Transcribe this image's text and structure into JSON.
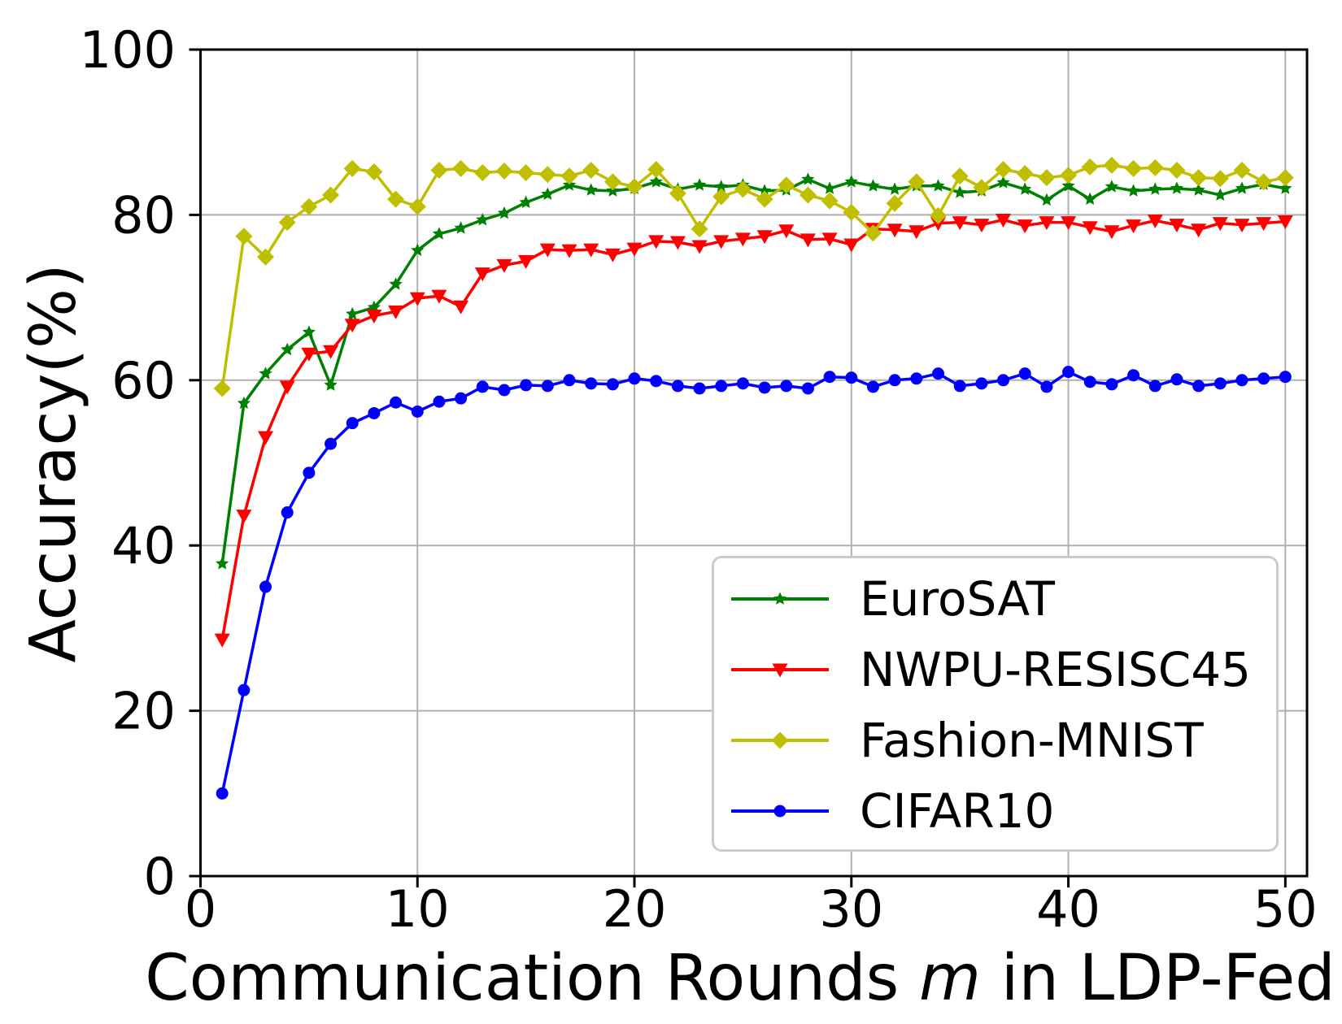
{
  "figure": {
    "background": "#ffffff",
    "x_axis": {
      "label_pre": "Communication Rounds ",
      "label_var": "m",
      "label_post": " in LDP-Fed",
      "ticks": [
        0,
        10,
        20,
        30,
        40,
        50
      ]
    },
    "y_axis": {
      "label": "Accuracy(%)",
      "ticks": [
        0,
        20,
        40,
        60,
        80,
        100
      ]
    },
    "grid": {
      "show": true,
      "color": "#b0b0b0"
    },
    "spine_color": "#000000",
    "legend": {
      "position": "lower-right-inside",
      "border_color": "#cccccc",
      "background": "#ffffff"
    }
  },
  "chart_data": {
    "type": "line",
    "title": "",
    "xlabel": "Communication Rounds m in LDP-Fed",
    "ylabel": "Accuracy(%)",
    "xlim": [
      0,
      51
    ],
    "ylim": [
      0,
      100
    ],
    "grid": true,
    "legend_position": "lower right",
    "x": [
      1,
      2,
      3,
      4,
      5,
      6,
      7,
      8,
      9,
      10,
      11,
      12,
      13,
      14,
      15,
      16,
      17,
      18,
      19,
      20,
      21,
      22,
      23,
      24,
      25,
      26,
      27,
      28,
      29,
      30,
      31,
      32,
      33,
      34,
      35,
      36,
      37,
      38,
      39,
      40,
      41,
      42,
      43,
      44,
      45,
      46,
      47,
      48,
      49,
      50
    ],
    "series": [
      {
        "name": "EuroSAT",
        "color": "#008000",
        "marker": "star",
        "values": [
          37.8,
          57.2,
          60.8,
          63.7,
          65.8,
          59.4,
          68.0,
          68.8,
          71.6,
          75.7,
          77.7,
          78.4,
          79.4,
          80.2,
          81.5,
          82.5,
          83.6,
          83.0,
          82.9,
          83.2,
          84.0,
          83.1,
          83.6,
          83.4,
          83.6,
          82.9,
          83.0,
          84.3,
          83.2,
          84.0,
          83.5,
          83.1,
          83.5,
          83.5,
          82.7,
          82.9,
          83.9,
          83.1,
          81.8,
          83.5,
          81.9,
          83.4,
          82.9,
          83.1,
          83.2,
          83.0,
          82.4,
          83.2,
          83.7,
          83.2
        ]
      },
      {
        "name": "NWPU-RESISC45",
        "color": "#ff0000",
        "marker": "triangle-down",
        "values": [
          28.6,
          43.6,
          53.1,
          59.2,
          63.2,
          63.5,
          66.7,
          67.8,
          68.3,
          69.9,
          70.2,
          68.9,
          72.9,
          73.9,
          74.4,
          75.8,
          75.7,
          75.8,
          75.2,
          75.9,
          76.8,
          76.7,
          76.2,
          76.8,
          77.1,
          77.4,
          78.1,
          77.0,
          77.1,
          76.4,
          78.3,
          78.2,
          78.0,
          79.0,
          79.1,
          78.8,
          79.4,
          78.7,
          79.1,
          79.1,
          78.5,
          78.0,
          78.7,
          79.3,
          78.8,
          78.2,
          79.0,
          78.8,
          79.0,
          79.2
        ]
      },
      {
        "name": "Fashion-MNIST",
        "color": "#bfbf00",
        "marker": "diamond",
        "values": [
          59.0,
          77.4,
          74.9,
          79.1,
          81.0,
          82.4,
          85.6,
          85.2,
          81.9,
          81.0,
          85.4,
          85.6,
          85.1,
          85.3,
          85.1,
          84.9,
          84.7,
          85.4,
          84.0,
          83.4,
          85.5,
          82.6,
          78.3,
          82.2,
          83.1,
          81.9,
          83.6,
          82.4,
          81.7,
          80.3,
          77.8,
          81.4,
          84.0,
          79.9,
          84.7,
          83.3,
          85.5,
          85.0,
          84.5,
          84.8,
          85.8,
          86.0,
          85.6,
          85.7,
          85.4,
          84.5,
          84.4,
          85.4,
          84.0,
          84.5
        ]
      },
      {
        "name": "CIFAR10",
        "color": "#0000ff",
        "marker": "circle",
        "values": [
          10.0,
          22.5,
          35.0,
          44.0,
          48.8,
          52.3,
          54.8,
          56.0,
          57.3,
          56.2,
          57.4,
          57.8,
          59.2,
          58.8,
          59.4,
          59.3,
          60.0,
          59.6,
          59.5,
          60.2,
          59.9,
          59.3,
          59.0,
          59.3,
          59.6,
          59.1,
          59.3,
          59.0,
          60.4,
          60.3,
          59.2,
          60.0,
          60.2,
          60.8,
          59.3,
          59.6,
          60.0,
          60.8,
          59.2,
          61.0,
          59.8,
          59.5,
          60.6,
          59.3,
          60.1,
          59.3,
          59.6,
          60.0,
          60.2,
          60.4
        ]
      }
    ]
  }
}
